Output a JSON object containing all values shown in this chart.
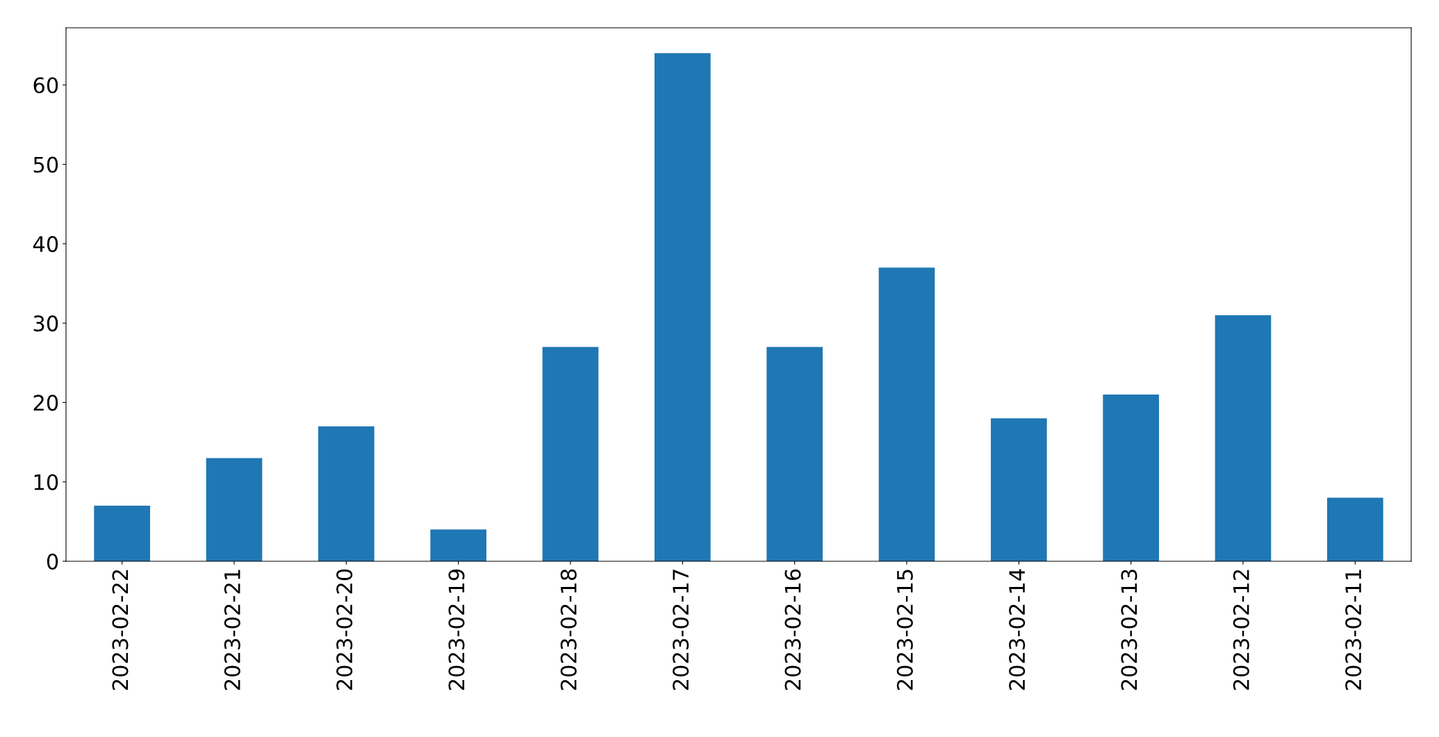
{
  "chart_data": {
    "type": "bar",
    "categories": [
      "2023-02-22",
      "2023-02-21",
      "2023-02-20",
      "2023-02-19",
      "2023-02-18",
      "2023-02-17",
      "2023-02-16",
      "2023-02-15",
      "2023-02-14",
      "2023-02-13",
      "2023-02-12",
      "2023-02-11"
    ],
    "values": [
      7,
      13,
      17,
      4,
      27,
      64,
      27,
      37,
      18,
      21,
      31,
      8
    ],
    "color": "#1f77b4",
    "ylim": [
      0,
      67.2
    ],
    "yticks": [
      0,
      10,
      20,
      30,
      40,
      50,
      60
    ],
    "grid": false
  }
}
